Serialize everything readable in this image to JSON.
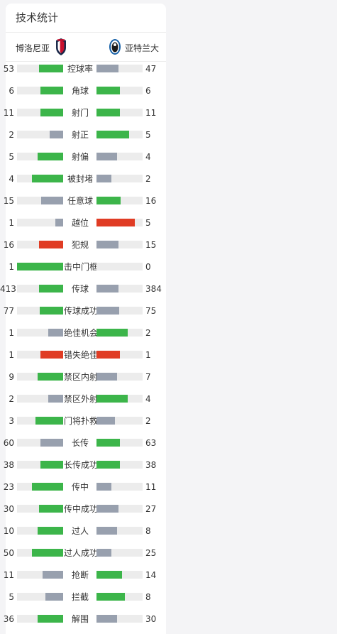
{
  "title": "技术统计",
  "teams": {
    "home": "博洛尼亚",
    "away": "亚特兰大"
  },
  "colors": {
    "win": "#3cb54a",
    "lose": "#98a0ae",
    "card": "#e03c24",
    "track": "#ececec"
  },
  "stats": [
    {
      "label": "控球率",
      "home": "53",
      "away": "47",
      "hf": 0.53,
      "af": 0.47,
      "hc": "win",
      "ac": "lose"
    },
    {
      "label": "角球",
      "home": "6",
      "away": "6",
      "hf": 0.5,
      "af": 0.5,
      "hc": "win",
      "ac": "win"
    },
    {
      "label": "射门",
      "home": "11",
      "away": "11",
      "hf": 0.5,
      "af": 0.5,
      "hc": "win",
      "ac": "win"
    },
    {
      "label": "射正",
      "home": "2",
      "away": "5",
      "hf": 0.29,
      "af": 0.71,
      "hc": "lose",
      "ac": "win"
    },
    {
      "label": "射偏",
      "home": "5",
      "away": "4",
      "hf": 0.56,
      "af": 0.44,
      "hc": "win",
      "ac": "lose"
    },
    {
      "label": "被封堵",
      "home": "4",
      "away": "2",
      "hf": 0.67,
      "af": 0.33,
      "hc": "win",
      "ac": "lose"
    },
    {
      "label": "任意球",
      "home": "15",
      "away": "16",
      "hf": 0.48,
      "af": 0.52,
      "hc": "lose",
      "ac": "win"
    },
    {
      "label": "越位",
      "home": "1",
      "away": "5",
      "hf": 0.17,
      "af": 0.83,
      "hc": "lose",
      "ac": "card"
    },
    {
      "label": "犯规",
      "home": "16",
      "away": "15",
      "hf": 0.52,
      "af": 0.48,
      "hc": "card",
      "ac": "lose"
    },
    {
      "label": "击中门框",
      "home": "1",
      "away": "0",
      "hf": 1.0,
      "af": 0.0,
      "hc": "win",
      "ac": "lose"
    },
    {
      "label": "传球",
      "home": "413",
      "away": "384",
      "hf": 0.52,
      "af": 0.48,
      "hc": "win",
      "ac": "lose"
    },
    {
      "label": "传球成功",
      "home": "77",
      "away": "75",
      "hf": 0.51,
      "af": 0.49,
      "hc": "win",
      "ac": "lose"
    },
    {
      "label": "绝佳机会",
      "home": "1",
      "away": "2",
      "hf": 0.33,
      "af": 0.67,
      "hc": "lose",
      "ac": "win"
    },
    {
      "label": "错失绝佳",
      "home": "1",
      "away": "1",
      "hf": 0.5,
      "af": 0.5,
      "hc": "card",
      "ac": "card"
    },
    {
      "label": "禁区内射",
      "home": "9",
      "away": "7",
      "hf": 0.56,
      "af": 0.44,
      "hc": "win",
      "ac": "lose"
    },
    {
      "label": "禁区外射",
      "home": "2",
      "away": "4",
      "hf": 0.33,
      "af": 0.67,
      "hc": "lose",
      "ac": "win"
    },
    {
      "label": "门将扑救",
      "home": "3",
      "away": "2",
      "hf": 0.6,
      "af": 0.4,
      "hc": "win",
      "ac": "lose"
    },
    {
      "label": "长传",
      "home": "60",
      "away": "63",
      "hf": 0.49,
      "af": 0.51,
      "hc": "lose",
      "ac": "win"
    },
    {
      "label": "长传成功",
      "home": "38",
      "away": "38",
      "hf": 0.5,
      "af": 0.5,
      "hc": "win",
      "ac": "win"
    },
    {
      "label": "传中",
      "home": "23",
      "away": "11",
      "hf": 0.68,
      "af": 0.32,
      "hc": "win",
      "ac": "lose"
    },
    {
      "label": "传中成功",
      "home": "30",
      "away": "27",
      "hf": 0.53,
      "af": 0.47,
      "hc": "win",
      "ac": "lose"
    },
    {
      "label": "过人",
      "home": "10",
      "away": "8",
      "hf": 0.56,
      "af": 0.44,
      "hc": "win",
      "ac": "lose"
    },
    {
      "label": "过人成功",
      "home": "50",
      "away": "25",
      "hf": 0.67,
      "af": 0.33,
      "hc": "win",
      "ac": "lose"
    },
    {
      "label": "抢断",
      "home": "11",
      "away": "14",
      "hf": 0.44,
      "af": 0.56,
      "hc": "lose",
      "ac": "win"
    },
    {
      "label": "拦截",
      "home": "5",
      "away": "8",
      "hf": 0.38,
      "af": 0.62,
      "hc": "lose",
      "ac": "win"
    },
    {
      "label": "解围",
      "home": "36",
      "away": "30",
      "hf": 0.55,
      "af": 0.45,
      "hc": "win",
      "ac": "lose"
    }
  ]
}
